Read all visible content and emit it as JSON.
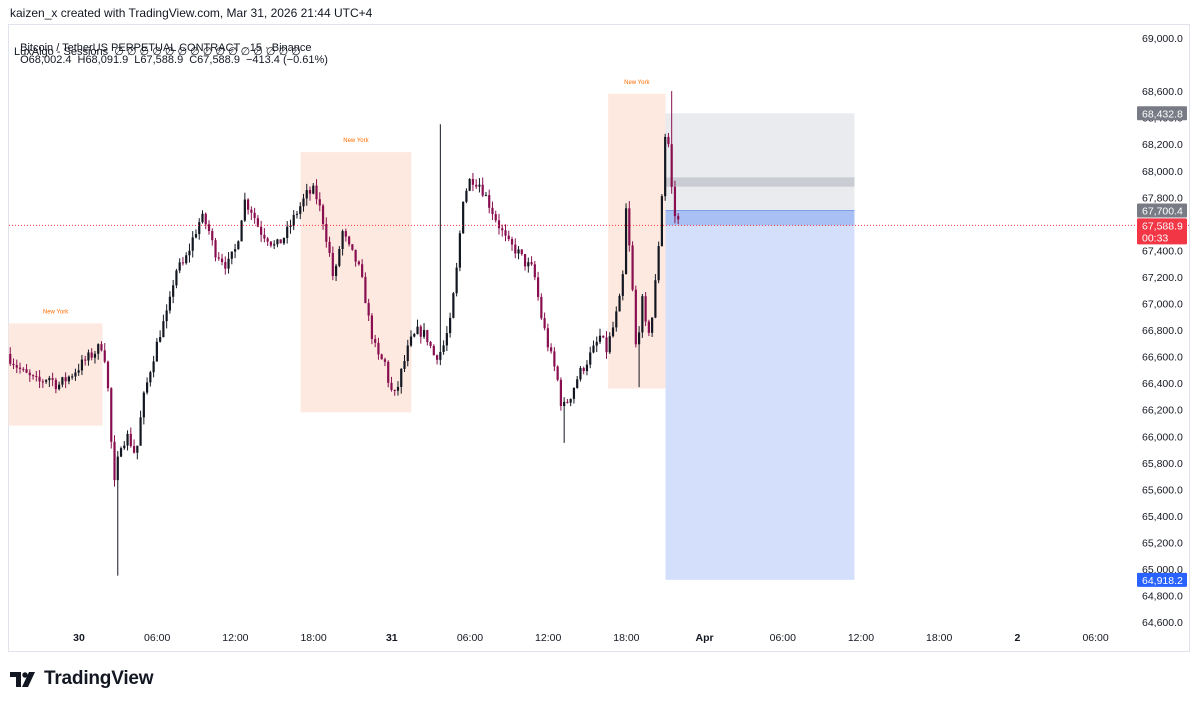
{
  "header": {
    "credit": "kaizen_x created with TradingView.com, Mar 31, 2026 21:44 UTC+4"
  },
  "legend": {
    "symbol": "Bitcoin / TetherUS PERPETUAL CONTRACT · 15 · Binance",
    "open": "O68,002.4",
    "high": "H68,091.9",
    "low": "L67,588.9",
    "close": "C67,588.9",
    "change": "−413.4 (−0.61%)",
    "indicator": "LuxAlgo - Sessions  ∅ ∅ ∅ ∅ ∅ ∅ ∅ ∅ ∅ ∅ ∅ ∅ ∅ ∅ ∅"
  },
  "brand": {
    "name": "TradingView",
    "icon": "tradingview-logo-icon"
  },
  "colors": {
    "up": "#131722",
    "down": "#880e4f",
    "session_fill": "#fde9df",
    "session_label": "#ff6d00",
    "target_fill": "#e9ebef",
    "stop_fill": "#d4e0fb",
    "price_line": "#f23645",
    "blue_badge": "#2962ff",
    "grey_badge": "#787b86"
  },
  "chart_data": {
    "type": "candlestick",
    "symbol": "BTCUSDT.P",
    "timeframe": "15",
    "exchange": "Binance",
    "y_axis": {
      "ylim": [
        64450,
        69150
      ],
      "ticks": [
        64600,
        64800,
        65000,
        65200,
        65400,
        65600,
        65800,
        66000,
        66200,
        66400,
        66600,
        66800,
        67000,
        67200,
        67400,
        67600,
        67800,
        68000,
        68200,
        68400,
        68600,
        69000
      ],
      "tick_labels": [
        "64,600.0",
        "64,800.0",
        "65,000.0",
        "65,200.0",
        "65,400.0",
        "65,600.0",
        "65,800.0",
        "66,000.0",
        "66,200.0",
        "66,400.0",
        "66,600.0",
        "66,800.0",
        "67,000.0",
        "67,200.0",
        "67,400.0",
        "67,600.0",
        "67,800.0",
        "68,000.0",
        "68,200.0",
        "68,400.0",
        "68,600.0",
        "69,000.0"
      ]
    },
    "x_axis": {
      "range_hours": [
        -3.2,
        53.6
      ],
      "ticks": [
        {
          "hour": 0,
          "label": "30"
        },
        {
          "hour": 6,
          "label": "06:00"
        },
        {
          "hour": 12,
          "label": "12:00"
        },
        {
          "hour": 18,
          "label": "18:00"
        },
        {
          "hour": 24,
          "label": "31"
        },
        {
          "hour": 30,
          "label": "06:00"
        },
        {
          "hour": 36,
          "label": "12:00"
        },
        {
          "hour": 42,
          "label": "18:00"
        },
        {
          "hour": 48,
          "label": "Apr"
        },
        {
          "hour": 54,
          "label": "06:00"
        },
        {
          "hour": 60,
          "label": "12:00"
        },
        {
          "hour": 66,
          "label": "18:00"
        },
        {
          "hour": 72,
          "label": "2"
        },
        {
          "hour": 78,
          "label": "06:00"
        }
      ],
      "bold_labels": [
        "30",
        "31",
        "Apr",
        "2"
      ]
    },
    "x_axis_scale": {
      "px_per_hour": 13.03,
      "zero_px": 79
    },
    "waypoints": [
      {
        "h": -5.4,
        "p": 66620
      },
      {
        "h": -4.2,
        "p": 66480
      },
      {
        "h": -3.0,
        "p": 66400
      },
      {
        "h": -2.2,
        "p": 66450
      },
      {
        "h": -1.5,
        "p": 66380
      },
      {
        "h": -0.5,
        "p": 66460
      },
      {
        "h": 0.5,
        "p": 66560
      },
      {
        "h": 1.5,
        "p": 66650
      },
      {
        "h": 2.0,
        "p": 66700
      },
      {
        "h": 2.4,
        "p": 66300
      },
      {
        "h": 2.8,
        "p": 65600
      },
      {
        "h": 3.3,
        "p": 65950
      },
      {
        "h": 3.9,
        "p": 66000
      },
      {
        "h": 4.5,
        "p": 65850
      },
      {
        "h": 5.0,
        "p": 66250
      },
      {
        "h": 5.7,
        "p": 66550
      },
      {
        "h": 6.4,
        "p": 66800
      },
      {
        "h": 7.0,
        "p": 66950
      },
      {
        "h": 7.5,
        "p": 67250
      },
      {
        "h": 8.2,
        "p": 67300
      },
      {
        "h": 8.9,
        "p": 67500
      },
      {
        "h": 9.5,
        "p": 67650
      },
      {
        "h": 10.0,
        "p": 67580
      },
      {
        "h": 10.5,
        "p": 67400
      },
      {
        "h": 11.0,
        "p": 67350
      },
      {
        "h": 11.5,
        "p": 67280
      },
      {
        "h": 12.2,
        "p": 67420
      },
      {
        "h": 12.8,
        "p": 67780
      },
      {
        "h": 13.4,
        "p": 67700
      },
      {
        "h": 14.0,
        "p": 67550
      },
      {
        "h": 14.6,
        "p": 67500
      },
      {
        "h": 15.2,
        "p": 67420
      },
      {
        "h": 16.0,
        "p": 67520
      },
      {
        "h": 16.8,
        "p": 67680
      },
      {
        "h": 17.6,
        "p": 67820
      },
      {
        "h": 18.2,
        "p": 67850
      },
      {
        "h": 18.8,
        "p": 67650
      },
      {
        "h": 19.3,
        "p": 67400
      },
      {
        "h": 19.7,
        "p": 67150
      },
      {
        "h": 20.3,
        "p": 67550
      },
      {
        "h": 20.9,
        "p": 67400
      },
      {
        "h": 21.5,
        "p": 67300
      },
      {
        "h": 22.0,
        "p": 67100
      },
      {
        "h": 22.4,
        "p": 66850
      },
      {
        "h": 23.0,
        "p": 66600
      },
      {
        "h": 23.6,
        "p": 66550
      },
      {
        "h": 24.0,
        "p": 66350
      },
      {
        "h": 24.4,
        "p": 66300
      },
      {
        "h": 24.9,
        "p": 66500
      },
      {
        "h": 25.5,
        "p": 66700
      },
      {
        "h": 26.2,
        "p": 66800
      },
      {
        "h": 26.8,
        "p": 66750
      },
      {
        "h": 27.4,
        "p": 66600
      },
      {
        "h": 28.0,
        "p": 66650
      },
      {
        "h": 28.6,
        "p": 66850
      },
      {
        "h": 29.1,
        "p": 67250
      },
      {
        "h": 29.6,
        "p": 67800
      },
      {
        "h": 30.2,
        "p": 67950
      },
      {
        "h": 30.9,
        "p": 67900
      },
      {
        "h": 31.6,
        "p": 67750
      },
      {
        "h": 32.3,
        "p": 67600
      },
      {
        "h": 33.0,
        "p": 67450
      },
      {
        "h": 33.7,
        "p": 67400
      },
      {
        "h": 34.4,
        "p": 67300
      },
      {
        "h": 35.0,
        "p": 67250
      },
      {
        "h": 35.6,
        "p": 66900
      },
      {
        "h": 36.2,
        "p": 66650
      },
      {
        "h": 36.8,
        "p": 66450
      },
      {
        "h": 37.2,
        "p": 66200
      },
      {
        "h": 37.8,
        "p": 66300
      },
      {
        "h": 38.4,
        "p": 66450
      },
      {
        "h": 39.0,
        "p": 66550
      },
      {
        "h": 39.6,
        "p": 66650
      },
      {
        "h": 40.1,
        "p": 66750
      },
      {
        "h": 40.6,
        "p": 66650
      },
      {
        "h": 41.2,
        "p": 66850
      },
      {
        "h": 41.8,
        "p": 67100
      },
      {
        "h": 42.1,
        "p": 67700
      },
      {
        "h": 42.5,
        "p": 67250
      },
      {
        "h": 42.9,
        "p": 66600
      },
      {
        "h": 43.3,
        "p": 67050
      },
      {
        "h": 43.7,
        "p": 66750
      },
      {
        "h": 44.1,
        "p": 66900
      },
      {
        "h": 44.5,
        "p": 67300
      },
      {
        "h": 44.9,
        "p": 67900
      },
      {
        "h": 45.2,
        "p": 68450
      },
      {
        "h": 45.5,
        "p": 67950
      },
      {
        "h": 45.9,
        "p": 67620
      }
    ],
    "sessions": [
      {
        "label": "New York",
        "start_h": -5.4,
        "end_h": 1.8,
        "high": 66850,
        "low": 66080
      },
      {
        "label": "New York",
        "start_h": 17.0,
        "end_h": 25.5,
        "high": 68140,
        "low": 66180
      },
      {
        "label": "New York",
        "start_h": 40.6,
        "end_h": 45.0,
        "high": 68580,
        "low": 66360
      }
    ],
    "position": {
      "start_h": 45.0,
      "end_h": 59.5,
      "entry": 67700.4,
      "target": 68432.8,
      "stop": 64918.2,
      "band_top": 67950,
      "band_bottom": 67880
    },
    "last_price": {
      "value": 67588.9,
      "label": "67,588.9",
      "countdown": "00:33"
    },
    "price_labels": [
      {
        "value": 68432.8,
        "label": "68,432.8",
        "style": "grey"
      },
      {
        "value": 67700.4,
        "label": "67,700.4",
        "style": "grey"
      },
      {
        "value": 64918.2,
        "label": "64,918.2",
        "style": "blue"
      }
    ]
  }
}
